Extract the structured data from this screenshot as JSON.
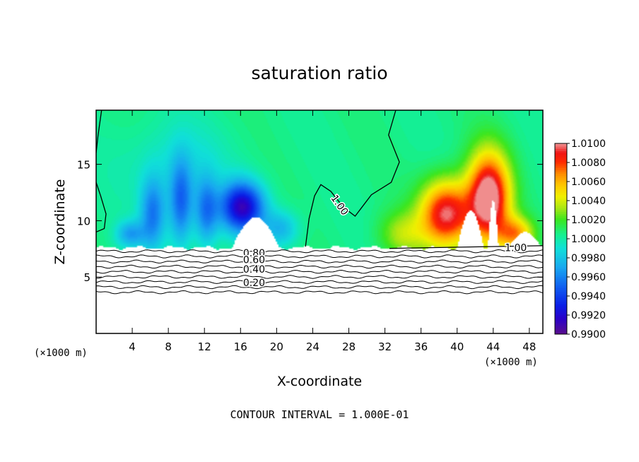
{
  "chart_data": {
    "type": "heatmap",
    "title": "saturation ratio",
    "xlabel": "X-coordinate",
    "ylabel": "Z-coordinate",
    "x_unit_left": "(×1000 m)",
    "x_unit_right": "(×1000 m)",
    "xlim": [
      0,
      49.5
    ],
    "ylim": [
      0,
      19.8
    ],
    "x_ticks": [
      4,
      8,
      12,
      16,
      20,
      24,
      28,
      32,
      36,
      40,
      44,
      48
    ],
    "y_ticks": [
      5,
      10,
      15
    ],
    "footer": "CONTOUR INTERVAL = 1.000E-01",
    "colorbar": {
      "min": 0.99,
      "max": 1.01,
      "step": 0.0002,
      "labels": [
        "1.0100",
        "1.0080",
        "1.0060",
        "1.0040",
        "1.0020",
        "1.0000",
        "0.9980",
        "0.9960",
        "0.9940",
        "0.9920",
        "0.9900"
      ],
      "stops": [
        [
          "#5a0f8c",
          0.0
        ],
        [
          "#2a00c8",
          0.08
        ],
        [
          "#0a1ee6",
          0.15
        ],
        [
          "#1060f0",
          0.25
        ],
        [
          "#18a8f0",
          0.35
        ],
        [
          "#10e0d8",
          0.45
        ],
        [
          "#14f090",
          0.52
        ],
        [
          "#3ce61e",
          0.6
        ],
        [
          "#a8e614",
          0.66
        ],
        [
          "#f0f000",
          0.72
        ],
        [
          "#ffc800",
          0.78
        ],
        [
          "#ff8c00",
          0.84
        ],
        [
          "#ff2a00",
          0.9
        ],
        [
          "#f01414",
          0.95
        ],
        [
          "#f09a9a",
          1.0
        ]
      ]
    },
    "contour_labels": [
      {
        "text": "1.00",
        "x": 27.0,
        "z": 11.4
      },
      {
        "text": "1.00",
        "x": 46.5,
        "z": 7.6
      },
      {
        "text": "0.80",
        "x": 17.5,
        "z": 7.15
      },
      {
        "text": "0.60",
        "x": 17.5,
        "z": 6.55
      },
      {
        "text": "0.40",
        "x": 17.5,
        "z": 5.7
      },
      {
        "text": "0.20",
        "x": 17.5,
        "z": 4.5
      }
    ],
    "lower_contour_levels": [
      0.9,
      0.8,
      0.7,
      0.6,
      0.5,
      0.4,
      0.3,
      0.2,
      0.1
    ],
    "regions": {
      "background_value": 1.0005,
      "cloud_base_z": 7.6,
      "subsaturated_blue": [
        {
          "x": 3.8,
          "z": 8.8,
          "amp": -0.0035,
          "sx": 1.6,
          "sz": 1.2
        },
        {
          "x": 6.3,
          "z": 10.6,
          "amp": -0.0046,
          "sx": 1.4,
          "sz": 3.2
        },
        {
          "x": 9.4,
          "z": 11.6,
          "amp": -0.005,
          "sx": 1.3,
          "sz": 3.8
        },
        {
          "x": 12.2,
          "z": 10.8,
          "amp": -0.0044,
          "sx": 1.3,
          "sz": 3.0
        },
        {
          "x": 16.2,
          "z": 11.2,
          "amp": -0.009,
          "sx": 2.4,
          "sz": 2.2
        },
        {
          "x": 20.5,
          "z": 9.3,
          "amp": -0.003,
          "sx": 2.0,
          "sz": 1.6
        },
        {
          "x": 9.0,
          "z": 15.0,
          "amp": -0.0014,
          "sx": 6.0,
          "sz": 4.0
        }
      ],
      "supersaturated_red": [
        {
          "x": 38.8,
          "z": 10.6,
          "amp": 0.0092,
          "sx": 2.8,
          "sz": 2.9
        },
        {
          "x": 43.5,
          "z": 12.0,
          "amp": 0.011,
          "sx": 2.3,
          "sz": 3.9
        },
        {
          "x": 46.5,
          "z": 8.8,
          "amp": 0.0055,
          "sx": 1.9,
          "sz": 1.5
        },
        {
          "x": 34.0,
          "z": 8.8,
          "amp": 0.0028,
          "sx": 2.6,
          "sz": 2.0
        }
      ],
      "dry_notches": [
        {
          "x": 17.7,
          "top": 10.3,
          "half": 2.6
        },
        {
          "x": 41.5,
          "top": 10.9,
          "half": 1.5
        },
        {
          "x": 44.0,
          "top": 11.8,
          "half": 0.6
        },
        {
          "x": 47.5,
          "top": 9.0,
          "half": 1.8
        }
      ]
    }
  }
}
